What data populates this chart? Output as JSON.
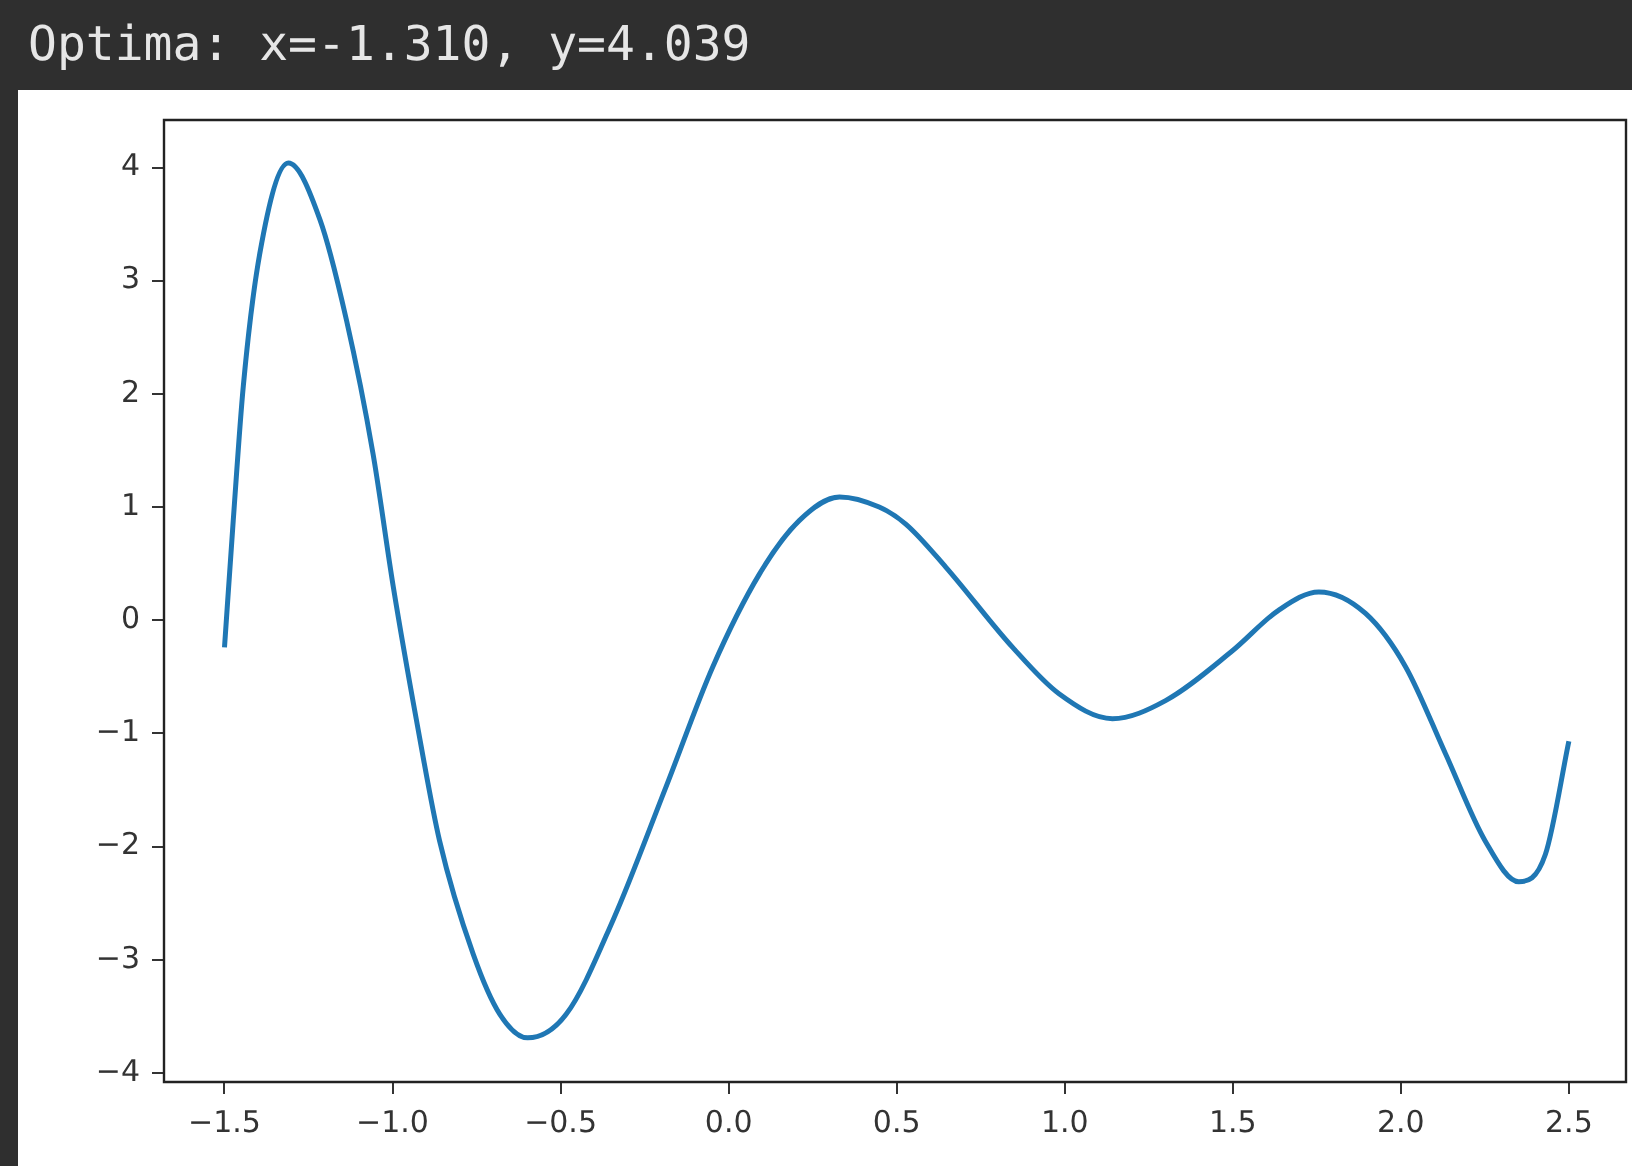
{
  "chart_data": {
    "type": "line",
    "title": "Optima: x=-1.310, y=4.039",
    "x": [
      -1.5,
      -1.474,
      -1.444,
      -1.395,
      -1.31,
      -1.216,
      -1.137,
      -1.058,
      -0.998,
      -0.929,
      -0.86,
      -0.76,
      -0.681,
      -0.598,
      -0.483,
      -0.344,
      -0.186,
      -0.047,
      0.092,
      0.21,
      0.33,
      0.448,
      0.527,
      0.646,
      0.845,
      0.983,
      1.142,
      1.3,
      1.499,
      1.637,
      1.756,
      1.895,
      2.014,
      2.133,
      2.251,
      2.351,
      2.43,
      2.5
    ],
    "series": [
      {
        "color": "#1f77b4",
        "values": [
          -0.24,
          0.88,
          2.07,
          3.24,
          4.04,
          3.54,
          2.65,
          1.47,
          0.3,
          -0.88,
          -1.95,
          -2.95,
          -3.48,
          -3.69,
          -3.48,
          -2.65,
          -1.47,
          -0.41,
          0.41,
          0.88,
          1.09,
          1.0,
          0.85,
          0.47,
          -0.24,
          -0.65,
          -0.87,
          -0.71,
          -0.27,
          0.09,
          0.25,
          0.06,
          -0.41,
          -1.18,
          -1.95,
          -2.31,
          -2.07,
          -1.07
        ]
      }
    ],
    "xlim": [
      -1.68,
      2.67
    ],
    "ylim": [
      -4.08,
      4.42
    ],
    "xticks": [
      -1.5,
      {
        "value": -1,
        "label": "−1.0"
      },
      -0.5,
      {
        "value": 0,
        "label": "0.0"
      },
      0.5,
      {
        "value": 1,
        "label": "1.0"
      },
      1.5,
      {
        "value": 2,
        "label": "2.0"
      },
      2.5
    ],
    "yticks": [
      -4,
      -3,
      -2,
      -1,
      0,
      1,
      2,
      3,
      4
    ],
    "grid": false,
    "legend": false,
    "marker": "none",
    "line_style": "solid"
  }
}
